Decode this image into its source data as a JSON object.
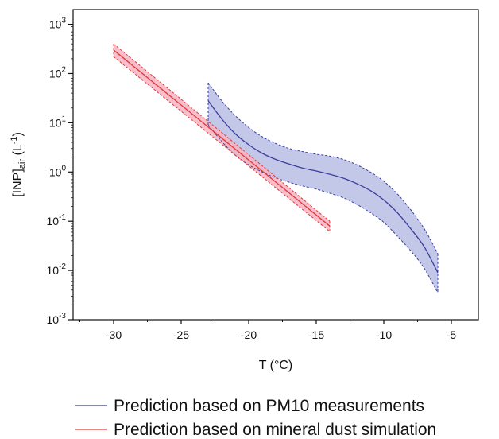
{
  "chart_data": {
    "type": "line",
    "title": "",
    "xlabel": "T (°C)",
    "ylabel_main": "[INP]",
    "ylabel_sub": "air",
    "ylabel_unit": " (L",
    "ylabel_unit_sup": "-1",
    "ylabel_close": ")",
    "xlim": [
      -33,
      -3
    ],
    "ylim_exp": [
      -3,
      3.3
    ],
    "yscale": "log",
    "grid": false,
    "legend_position": "bottom",
    "x_ticks": [
      -30,
      -25,
      -20,
      -15,
      -10,
      -5
    ],
    "y_tick_exponents": [
      -3,
      -2,
      -1,
      0,
      1,
      2,
      3
    ],
    "series": [
      {
        "name": "Prediction based on PM10 measurements",
        "color": "#3a3e9e",
        "fill": "#b9bde4",
        "x": [
          -23,
          -22,
          -21,
          -20,
          -19,
          -18,
          -17,
          -16,
          -15,
          -14,
          -13,
          -12,
          -11,
          -10,
          -9,
          -8,
          -7,
          -6
        ],
        "y": [
          28,
          12,
          6,
          3.6,
          2.4,
          1.8,
          1.45,
          1.2,
          1.05,
          0.9,
          0.75,
          0.58,
          0.42,
          0.27,
          0.15,
          0.07,
          0.03,
          0.009
        ],
        "upper": [
          65,
          28,
          14,
          8,
          5.2,
          3.8,
          3.0,
          2.6,
          2.3,
          2.1,
          1.8,
          1.4,
          1.0,
          0.65,
          0.36,
          0.17,
          0.07,
          0.022
        ],
        "lower": [
          9,
          4.2,
          2.2,
          1.4,
          1.0,
          0.76,
          0.62,
          0.52,
          0.45,
          0.37,
          0.3,
          0.22,
          0.15,
          0.095,
          0.05,
          0.025,
          0.011,
          0.0035
        ]
      },
      {
        "name": "Prediction based on mineral dust simulation",
        "color": "#e03a3a",
        "fill": "#f7b3c2",
        "x": [
          -30,
          -14
        ],
        "y": [
          300,
          0.08
        ],
        "upper": [
          400,
          0.1
        ],
        "lower": [
          220,
          0.062
        ]
      }
    ]
  }
}
